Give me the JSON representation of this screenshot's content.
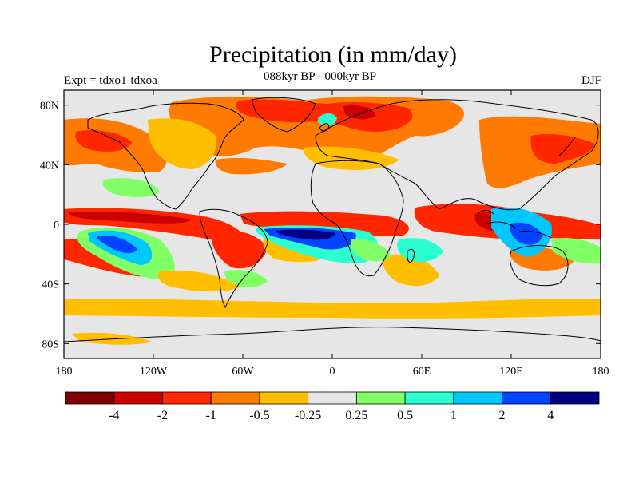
{
  "title": "Precipitation (in mm/day)",
  "subtitle": "088kyr BP - 000kyr BP",
  "left_label": "Expt = tdxo1-tdxoa",
  "right_label": "DJF",
  "map": {
    "lon_range": [
      -180,
      180
    ],
    "lat_range": [
      -90,
      90
    ],
    "background_color": "#e6e6e6",
    "y_tick_labels": [
      "80N",
      "40N",
      "0",
      "40S",
      "80S"
    ],
    "x_tick_labels": [
      "180",
      "120W",
      "60W",
      "0",
      "60E",
      "120E",
      "180"
    ]
  },
  "colorbar": {
    "colors": [
      "#7f0000",
      "#cc0000",
      "#ff2600",
      "#ff7a00",
      "#ffbf00",
      "#e6e6e6",
      "#80ff66",
      "#2bffd1",
      "#00c8ff",
      "#0044ff",
      "#000080"
    ],
    "labels": [
      "-4",
      "-2",
      "-1",
      "-0.5",
      "-0.25",
      "0.25",
      "0.5",
      "1",
      "2",
      "4"
    ]
  }
}
